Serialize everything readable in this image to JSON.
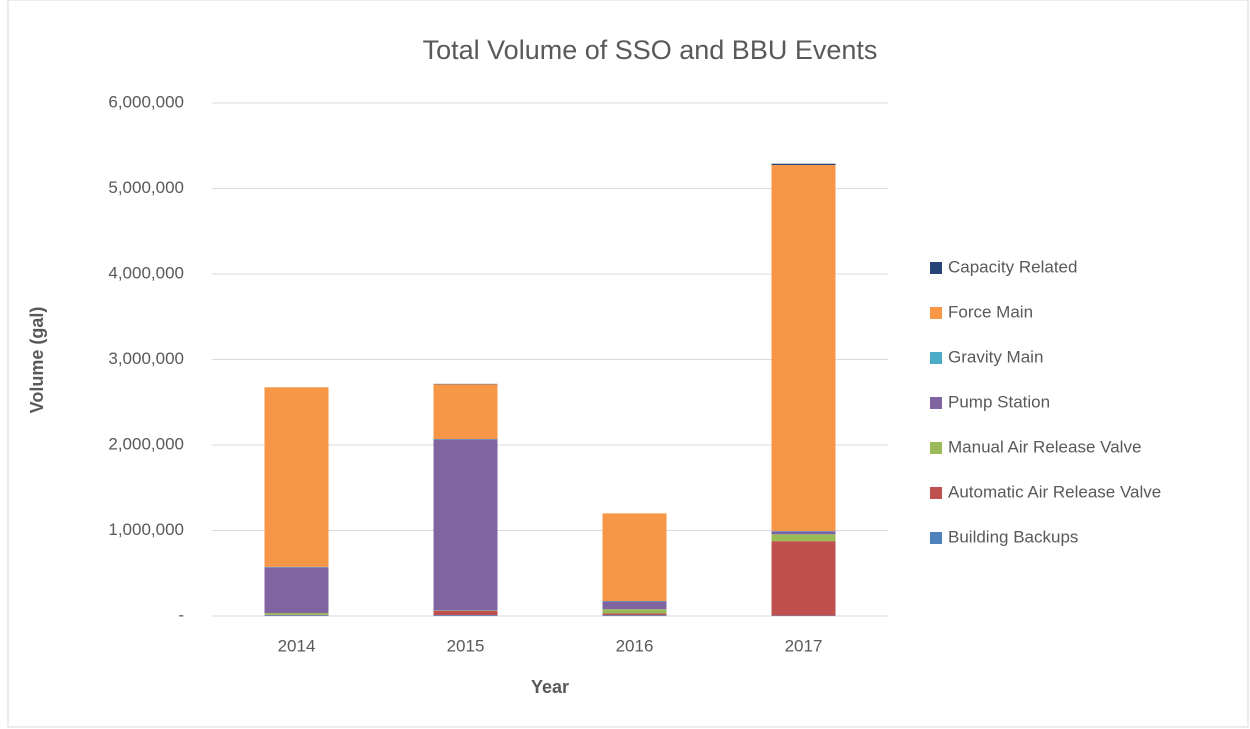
{
  "chart_data": {
    "type": "stacked_bar",
    "title": "Total Volume of SSO and BBU Events",
    "x_label": "Year",
    "y_label": "Volume (gal)",
    "categories": [
      "2014",
      "2015",
      "2016",
      "2017"
    ],
    "series": [
      {
        "name": "Building Backups",
        "color": "#4f81bd",
        "values": [
          10000,
          10000,
          10000,
          5000
        ]
      },
      {
        "name": "Automatic Air Release Valve",
        "color": "#c0504d",
        "values": [
          5000,
          50000,
          20000,
          870000
        ]
      },
      {
        "name": "Manual Air Release Valve",
        "color": "#9bbb59",
        "values": [
          20000,
          5000,
          50000,
          80000
        ]
      },
      {
        "name": "Pump Station",
        "color": "#8064a2",
        "values": [
          535000,
          2000000,
          90000,
          35000
        ]
      },
      {
        "name": "Gravity Main",
        "color": "#4bacc6",
        "values": [
          5000,
          5000,
          5000,
          5000
        ]
      },
      {
        "name": "Force Main",
        "color": "#f79646",
        "values": [
          2100000,
          640000,
          1025000,
          4280000
        ]
      },
      {
        "name": "Capacity Related",
        "color": "#264478",
        "values": [
          0,
          5000,
          0,
          15000
        ]
      }
    ],
    "ylim": [
      0,
      6000000
    ],
    "yticks": [
      {
        "value": 0,
        "label": "-"
      },
      {
        "value": 1000000,
        "label": "1,000,000"
      },
      {
        "value": 2000000,
        "label": "2,000,000"
      },
      {
        "value": 3000000,
        "label": "3,000,000"
      },
      {
        "value": 4000000,
        "label": "4,000,000"
      },
      {
        "value": 5000000,
        "label": "5,000,000"
      },
      {
        "value": 6000000,
        "label": "6,000,000"
      }
    ],
    "grid": true,
    "legend": "right"
  }
}
